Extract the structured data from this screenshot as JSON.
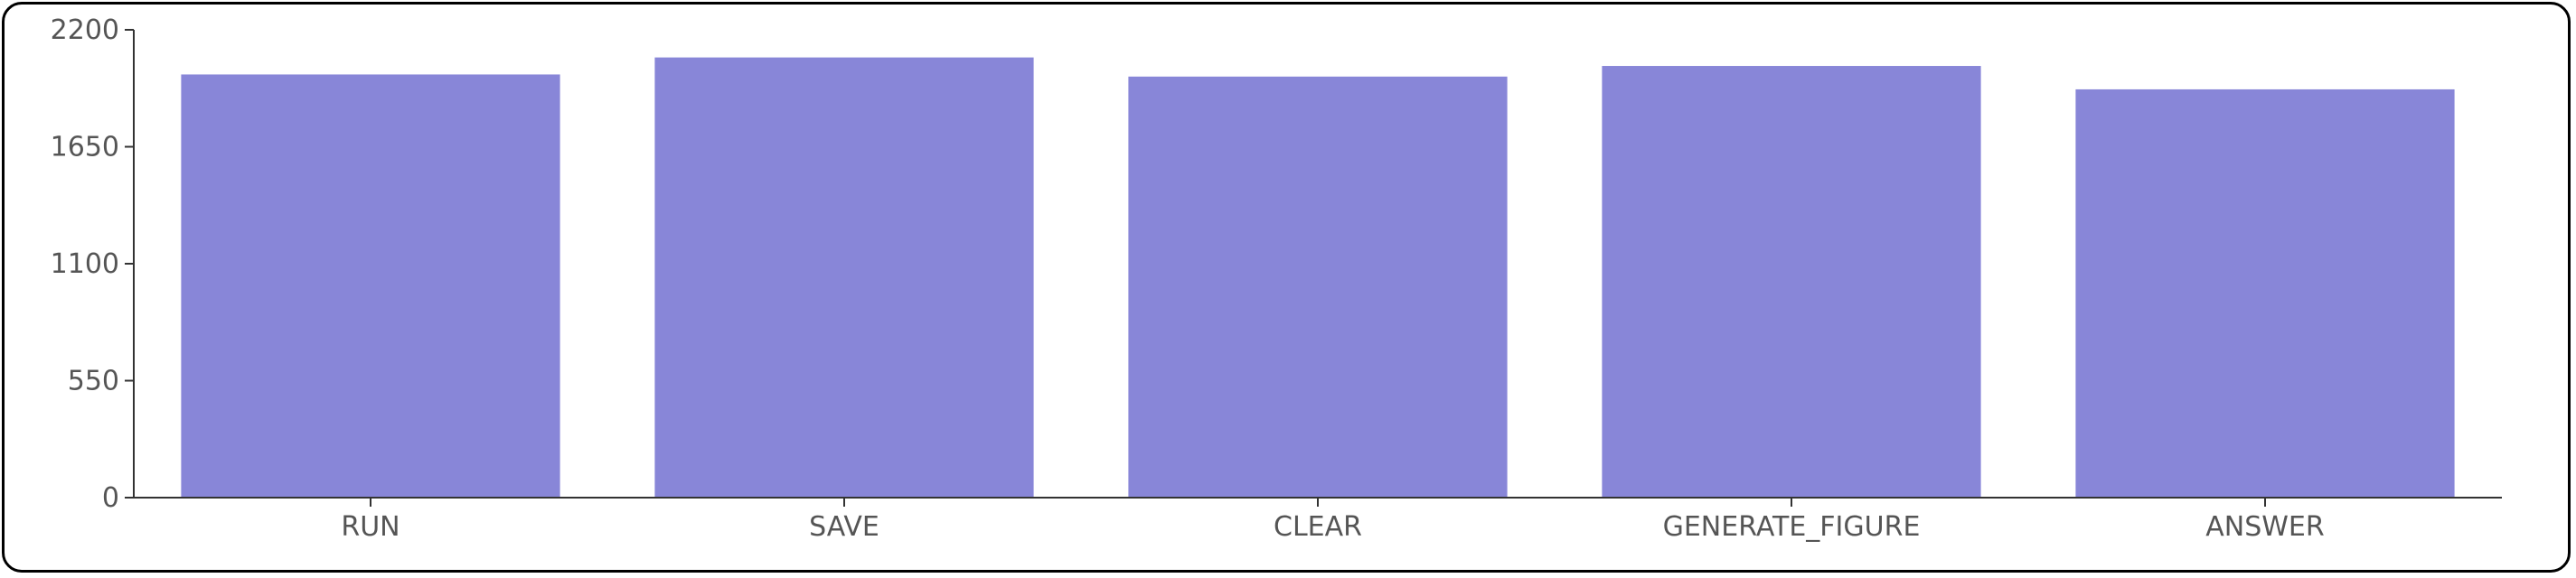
{
  "chart_data": {
    "type": "bar",
    "categories": [
      "RUN",
      "SAVE",
      "CLEAR",
      "GENERATE_FIGURE",
      "ANSWER"
    ],
    "values": [
      1990,
      2070,
      1980,
      2030,
      1920
    ],
    "ylim": [
      0,
      2200
    ],
    "yticks": [
      0,
      550,
      1100,
      1650,
      2200
    ],
    "ytick_labels": [
      "0",
      "550",
      "1100",
      "1650",
      "2200"
    ],
    "bar_color": "#8886d8",
    "axis_color": "#333333",
    "label_color": "#555555",
    "grid": false,
    "legend": "none",
    "title": "",
    "xlabel": "",
    "ylabel": ""
  }
}
